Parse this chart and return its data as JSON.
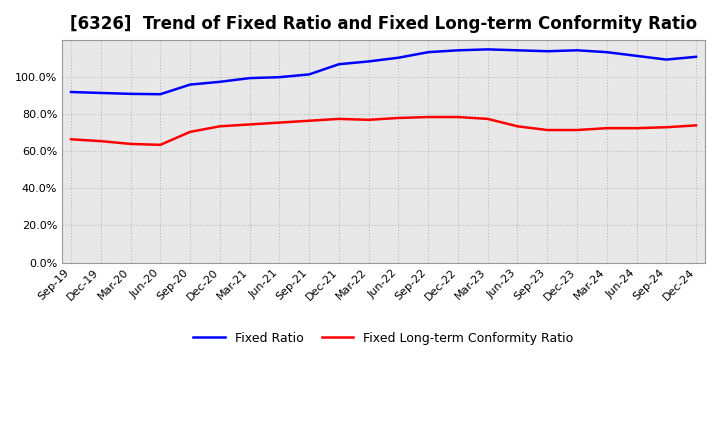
{
  "title": "[6326]  Trend of Fixed Ratio and Fixed Long-term Conformity Ratio",
  "x_labels": [
    "Sep-19",
    "Dec-19",
    "Mar-20",
    "Jun-20",
    "Sep-20",
    "Dec-20",
    "Mar-21",
    "Jun-21",
    "Sep-21",
    "Dec-21",
    "Mar-22",
    "Jun-22",
    "Sep-22",
    "Dec-22",
    "Mar-23",
    "Jun-23",
    "Sep-23",
    "Dec-23",
    "Mar-24",
    "Jun-24",
    "Sep-24",
    "Dec-24"
  ],
  "fixed_ratio": [
    92.0,
    91.5,
    91.0,
    90.8,
    96.0,
    97.5,
    99.5,
    100.0,
    101.5,
    107.0,
    108.5,
    110.5,
    113.5,
    114.5,
    115.0,
    114.5,
    114.0,
    114.5,
    113.5,
    111.5,
    109.5,
    111.0
  ],
  "fixed_lt_ratio": [
    66.5,
    65.5,
    64.0,
    63.5,
    70.5,
    73.5,
    74.5,
    75.5,
    76.5,
    77.5,
    77.0,
    78.0,
    78.5,
    78.5,
    77.5,
    73.5,
    71.5,
    71.5,
    72.5,
    72.5,
    73.0,
    74.0
  ],
  "fixed_ratio_color": "#0000FF",
  "fixed_lt_ratio_color": "#FF0000",
  "ylim": [
    0,
    120
  ],
  "yticks": [
    0,
    20,
    40,
    60,
    80,
    100
  ],
  "ytick_labels": [
    "0.0%",
    "20.0%",
    "40.0%",
    "60.0%",
    "80.0%",
    "100.0%"
  ],
  "background_color": "#FFFFFF",
  "plot_bg_color": "#E8E8E8",
  "grid_color": "#BBBBBB",
  "legend_fixed_ratio": "Fixed Ratio",
  "legend_fixed_lt_ratio": "Fixed Long-term Conformity Ratio",
  "line_width": 1.8,
  "title_fontsize": 12,
  "tick_fontsize": 8,
  "legend_fontsize": 9
}
